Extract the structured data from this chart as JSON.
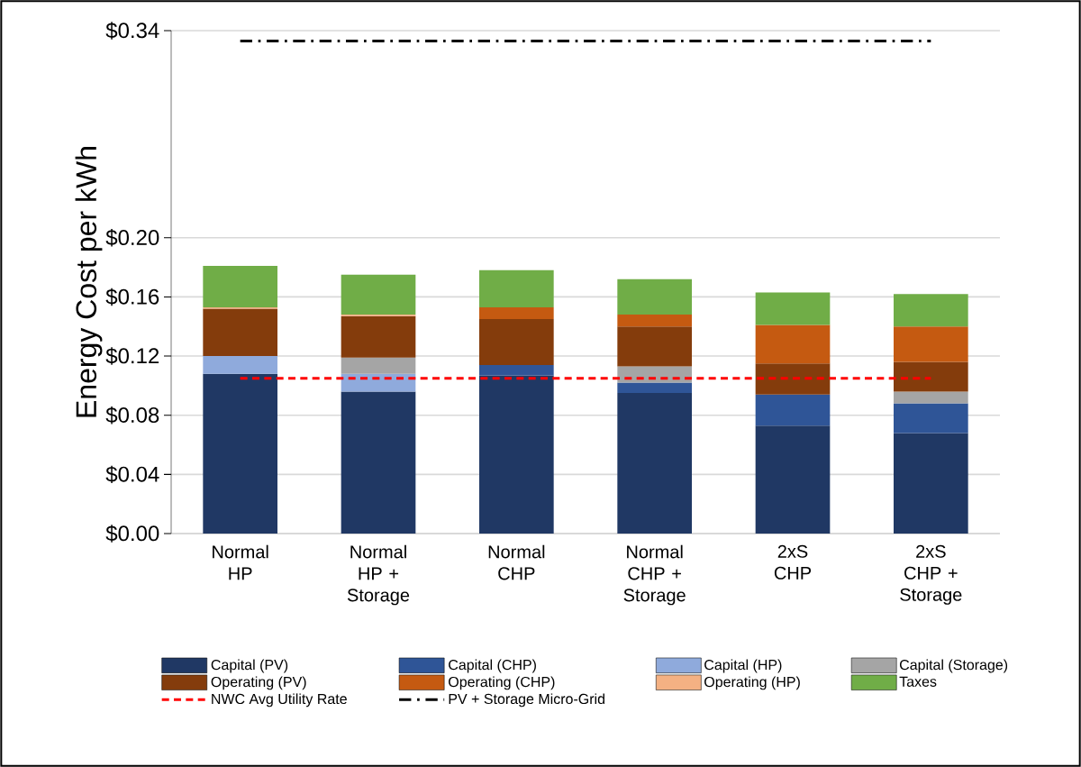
{
  "chart_data": {
    "type": "bar",
    "stacked": true,
    "ylabel": "Energy Cost per kWh",
    "categories": [
      "Normal HP",
      "Normal HP + Storage",
      "Normal CHP",
      "Normal CHP + Storage",
      "2xS CHP",
      "2xS CHP + Storage"
    ],
    "series": [
      {
        "name": "Capital (PV)",
        "color": "#203864",
        "values": [
          0.108,
          0.096,
          0.107,
          0.095,
          0.073,
          0.068
        ]
      },
      {
        "name": "Capital (CHP)",
        "color": "#2f5597",
        "values": [
          0,
          0,
          0.007,
          0.007,
          0.021,
          0.02
        ]
      },
      {
        "name": "Capital (HP)",
        "color": "#8faadc",
        "values": [
          0.012,
          0.012,
          0,
          0,
          0,
          0
        ]
      },
      {
        "name": "Capital (Storage)",
        "color": "#a5a5a5",
        "values": [
          0,
          0.011,
          0,
          0.011,
          0,
          0.008
        ]
      },
      {
        "name": "Operating (PV)",
        "color": "#843c0c",
        "values": [
          0.032,
          0.028,
          0.031,
          0.027,
          0.021,
          0.02
        ]
      },
      {
        "name": "Operating (CHP)",
        "color": "#c55a11",
        "values": [
          0,
          0,
          0.008,
          0.008,
          0.026,
          0.024
        ]
      },
      {
        "name": "Operating (HP)",
        "color": "#f4b183",
        "values": [
          0.001,
          0.001,
          0,
          0,
          0,
          0
        ]
      },
      {
        "name": "Taxes",
        "color": "#70ad47",
        "values": [
          0.028,
          0.027,
          0.025,
          0.024,
          0.022,
          0.022
        ]
      }
    ],
    "ref_lines": [
      {
        "axis": "y",
        "value": 0.105,
        "label": "NWC Avg Utility Rate",
        "color": "#ff0000",
        "line_style": "dashed"
      },
      {
        "axis": "y",
        "value": 0.333,
        "label": "PV + Storage Micro-Grid",
        "color": "#000000",
        "line_style": "dashdot"
      }
    ],
    "ylim": [
      0,
      0.34
    ],
    "yticks": [
      {
        "value": 0,
        "label": "$0.00"
      },
      {
        "value": 0.04,
        "label": "$0.04"
      },
      {
        "value": 0.08,
        "label": "$0.08"
      },
      {
        "value": 0.12,
        "label": "$0.12"
      },
      {
        "value": 0.16,
        "label": "$0.16"
      },
      {
        "value": 0.2,
        "label": "$0.20"
      },
      {
        "value": 0.34,
        "label": "$0.34"
      }
    ],
    "grid": "y",
    "legend": "bottom"
  }
}
